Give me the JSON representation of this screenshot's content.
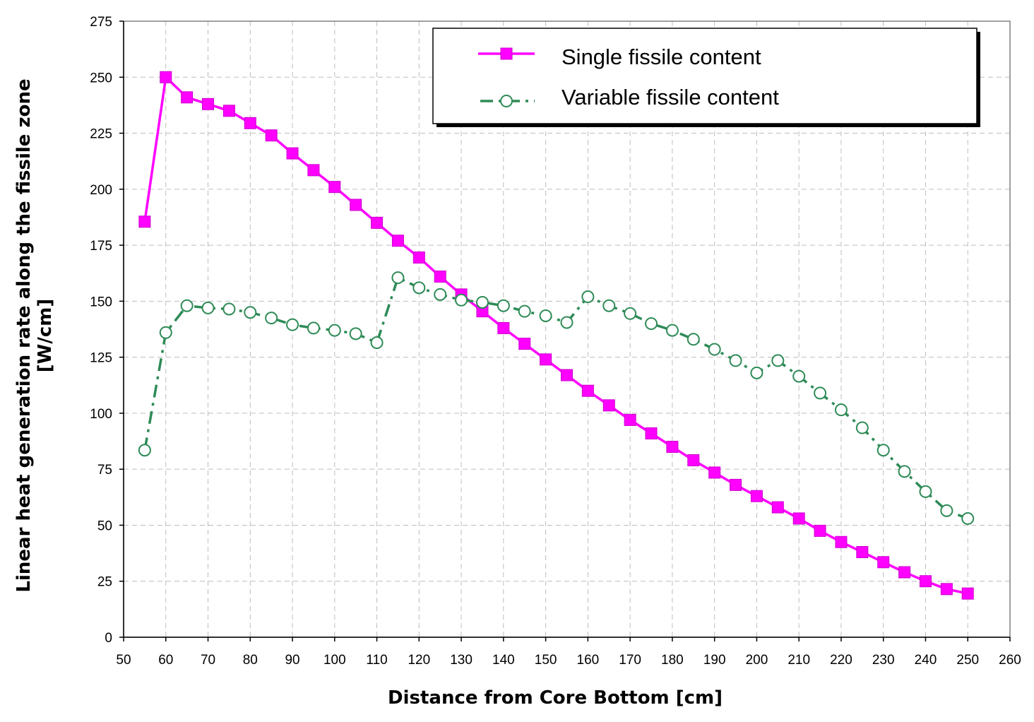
{
  "chart_data": {
    "type": "line",
    "xlabel": "Distance from Core Bottom [cm]",
    "ylabel": [
      "Linear heat generation rate along the fissile zone",
      "[W/cm]"
    ],
    "xlim": [
      50,
      260
    ],
    "ylim": [
      0,
      275
    ],
    "x_ticks": [
      50,
      60,
      70,
      80,
      90,
      100,
      110,
      120,
      130,
      140,
      150,
      160,
      170,
      180,
      190,
      200,
      210,
      220,
      230,
      240,
      250,
      260
    ],
    "y_ticks": [
      0,
      25,
      50,
      75,
      100,
      125,
      150,
      175,
      200,
      225,
      250,
      275
    ],
    "grid": true,
    "legend_position": "top-right",
    "x": [
      55,
      60,
      65,
      70,
      75,
      80,
      85,
      90,
      95,
      100,
      105,
      110,
      115,
      120,
      125,
      130,
      135,
      140,
      145,
      150,
      155,
      160,
      165,
      170,
      175,
      180,
      185,
      190,
      195,
      200,
      205,
      210,
      215,
      220,
      225,
      230,
      235,
      240,
      245,
      250
    ],
    "series": [
      {
        "name": "Single fissile content",
        "color": "#ff00ff",
        "marker": "filled-square",
        "line": "solid",
        "values": [
          185.5,
          250,
          241,
          238,
          235,
          229.5,
          224,
          216,
          208.5,
          201,
          193,
          185,
          177,
          169.5,
          161,
          153,
          145.5,
          138,
          131,
          124,
          117,
          110,
          103.5,
          97,
          91,
          85,
          79,
          73.5,
          68,
          63,
          58,
          53,
          47.5,
          42.5,
          38,
          33.5,
          29,
          25,
          21.5,
          19.5
        ]
      },
      {
        "name": "Variable fissile content",
        "color": "#2e8b57",
        "marker": "hollow-circle",
        "line": "dash-dot",
        "values": [
          83.5,
          136,
          148,
          147,
          146.5,
          145,
          142.5,
          139.5,
          138,
          137,
          135.5,
          131.5,
          160.5,
          156,
          153,
          150.5,
          149.5,
          148,
          145.5,
          143.5,
          140.5,
          152,
          148,
          144.5,
          140,
          137,
          133,
          128.5,
          123.5,
          118,
          123.5,
          116.5,
          109,
          101.5,
          93.5,
          83.5,
          74,
          65,
          56.5,
          53
        ]
      }
    ]
  }
}
